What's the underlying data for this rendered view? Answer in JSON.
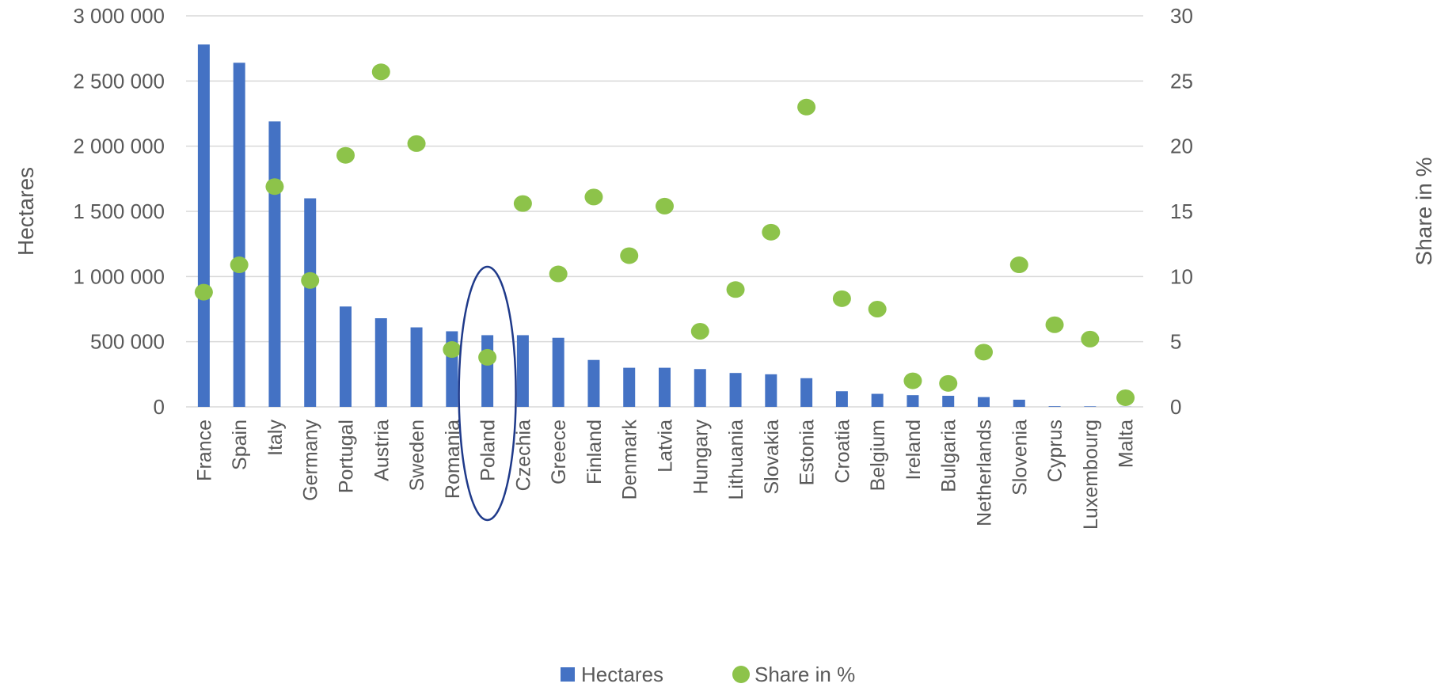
{
  "chart_data": {
    "type": "bar",
    "categories": [
      "France",
      "Spain",
      "Italy",
      "Germany",
      "Portugal",
      "Austria",
      "Sweden",
      "Romania",
      "Poland",
      "Czechia",
      "Greece",
      "Finland",
      "Denmark",
      "Latvia",
      "Hungary",
      "Lithuania",
      "Slovakia",
      "Estonia",
      "Croatia",
      "Belgium",
      "Ireland",
      "Bulgaria",
      "Netherlands",
      "Slovenia",
      "Cyprus",
      "Luxembourg",
      "Malta"
    ],
    "series": [
      {
        "name": "Hectares",
        "type": "bar",
        "axis": "left",
        "color": "#4472c4",
        "values": [
          2780000,
          2640000,
          2190000,
          1600000,
          770000,
          680000,
          610000,
          580000,
          550000,
          550000,
          530000,
          360000,
          300000,
          300000,
          290000,
          260000,
          250000,
          220000,
          120000,
          100000,
          90000,
          85000,
          75000,
          55000,
          5000,
          4000,
          1000
        ]
      },
      {
        "name": "Share in %",
        "type": "scatter",
        "axis": "right",
        "color": "#8dc34a",
        "values": [
          8.8,
          10.9,
          16.9,
          9.7,
          19.3,
          25.7,
          20.2,
          4.4,
          3.8,
          15.6,
          10.2,
          16.1,
          11.6,
          15.4,
          5.8,
          9.0,
          13.4,
          23.0,
          8.3,
          7.5,
          2.0,
          1.8,
          4.2,
          10.9,
          6.3,
          5.2,
          0.7
        ]
      }
    ],
    "ylabel": "Hectares",
    "y2label": "Share in %",
    "ylim": [
      0,
      3000000
    ],
    "y2lim": [
      0,
      30
    ],
    "yticks": [
      "0",
      "500 000",
      "1 000 000",
      "1 500 000",
      "2 000 000",
      "2 500 000",
      "3 000 000"
    ],
    "y2ticks": [
      "0",
      "5",
      "10",
      "15",
      "20",
      "25",
      "30"
    ],
    "grid": true,
    "legend": "bottom",
    "highlighted_category": "Poland",
    "highlight_color": "#1f3a8a"
  }
}
